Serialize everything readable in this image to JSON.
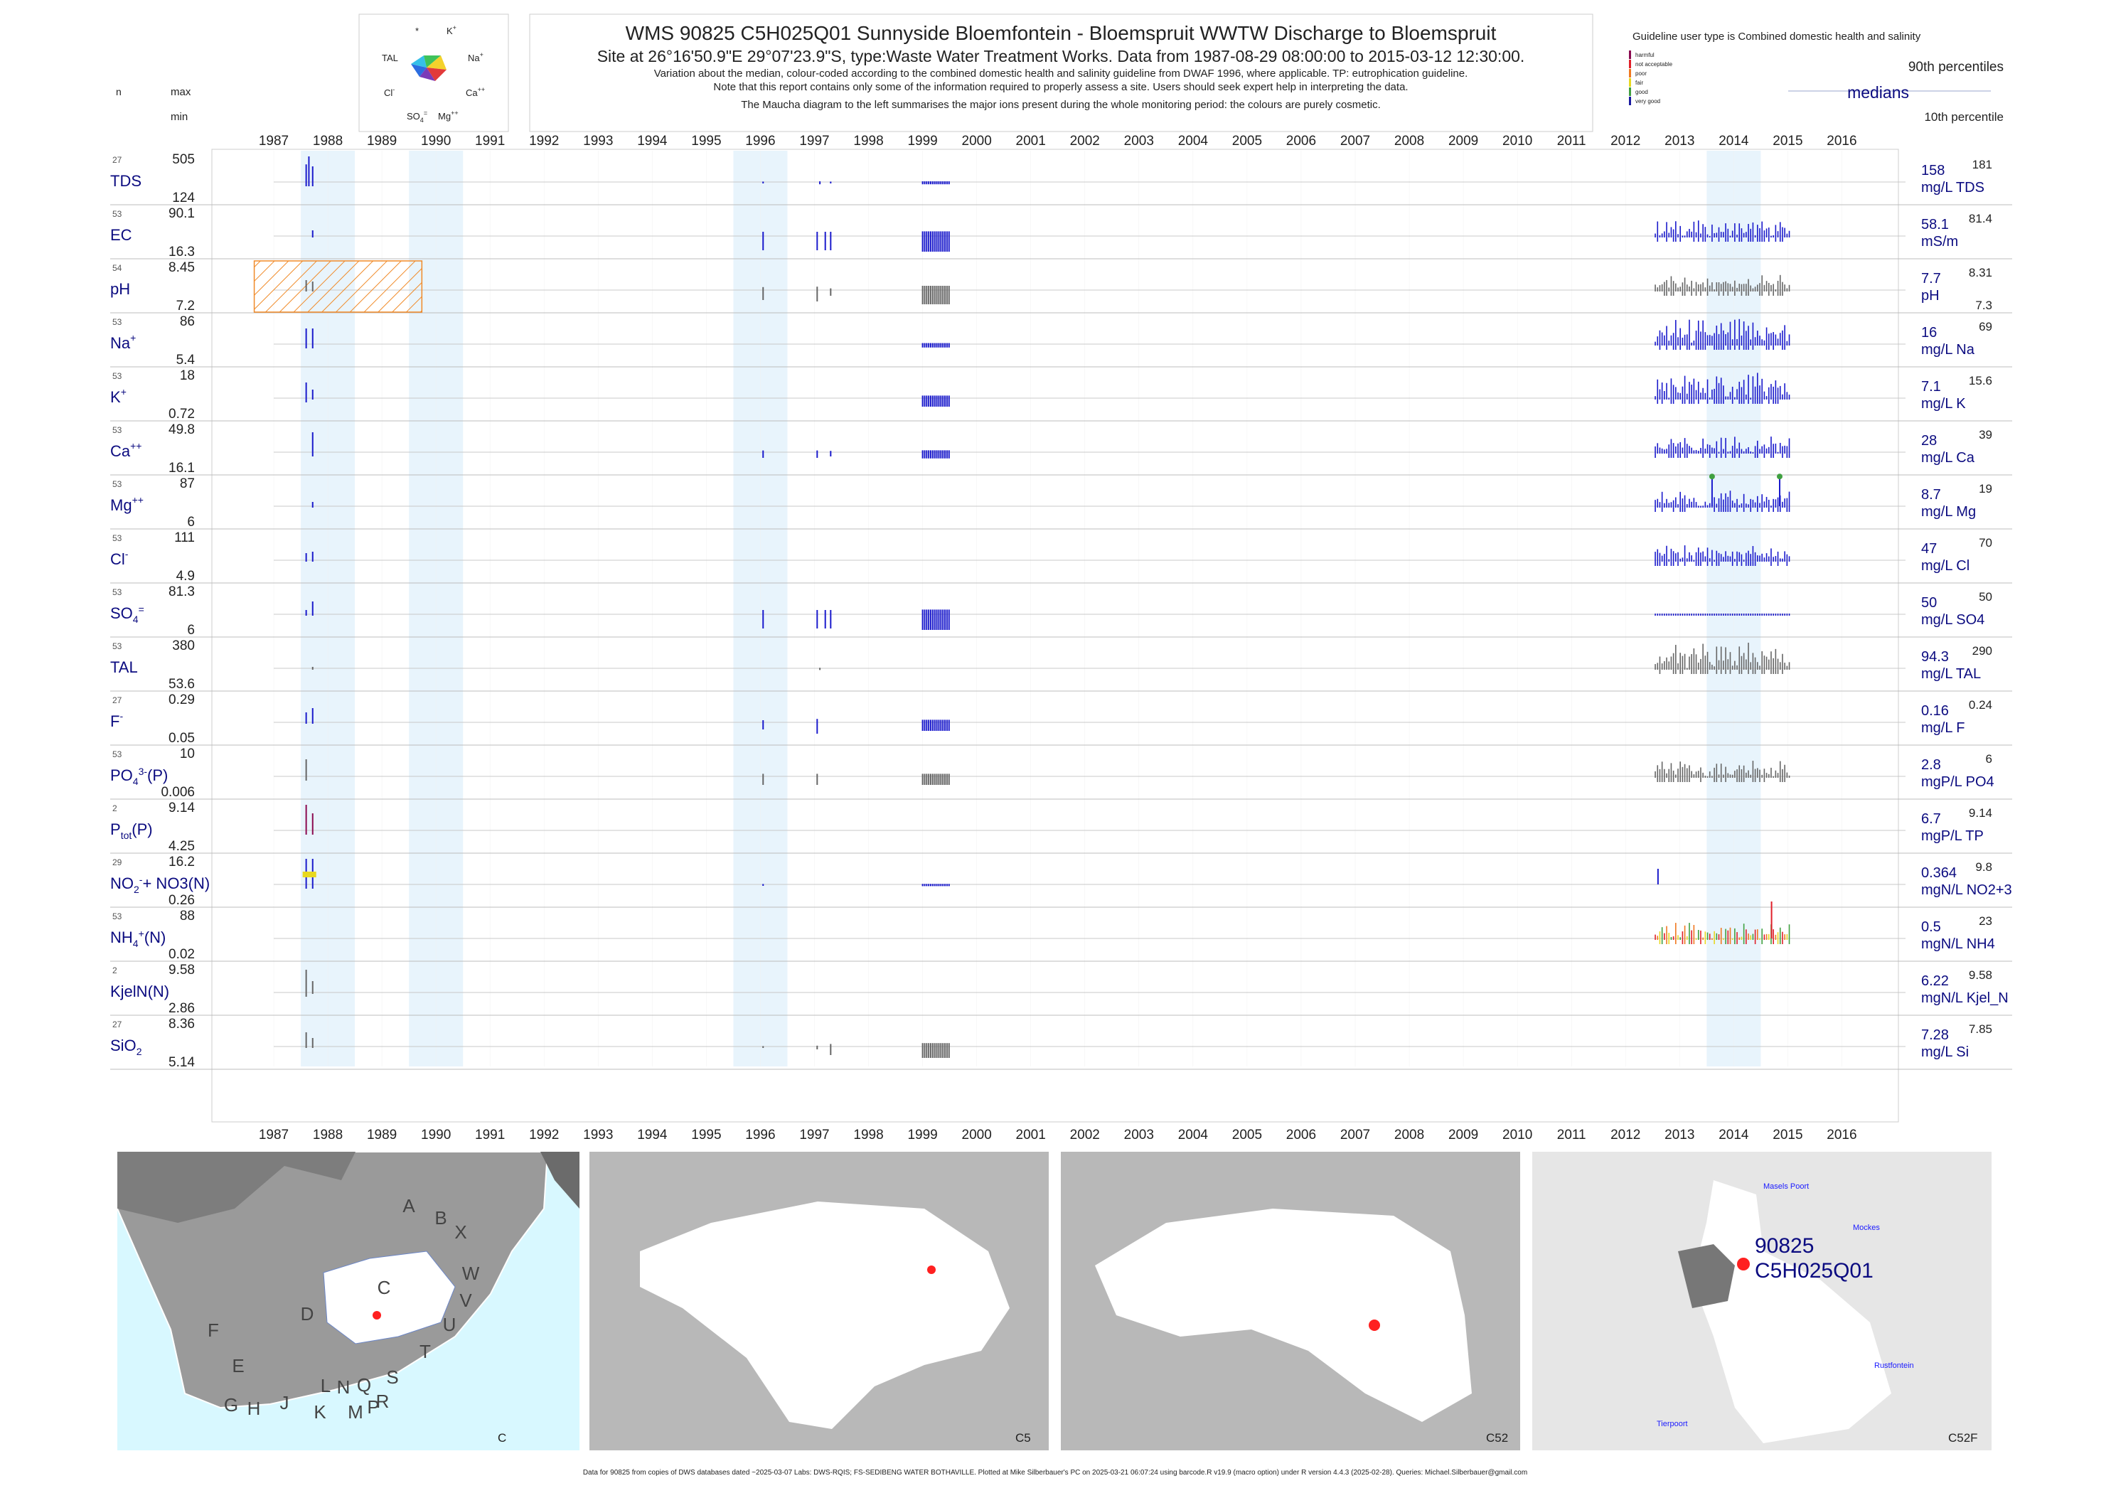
{
  "header": {
    "title": "WMS 90825 C5H025Q01 Sunnyside Bloemfontein - Bloemspruit WWTW Discharge to Bloemspruit",
    "subtitle": "Site at 26°16'50.9\"E 29°07'23.9\"S, type:Waste Water Treatment Works.  Data from 1987-08-29 08:00:00 to 2015-03-12 12:30:00.",
    "note1": "Variation about the median,  colour-coded according to the combined domestic health and salinity guideline from DWAF 1996, where applicable. TP: eutrophication guideline.",
    "note2": "Note that this report contains only some of the information required to properly assess a site. Users should seek expert help in interpreting the data.",
    "note3": "The Maucha diagram to the left summarises the major ions present during the whole monitoring period: the colours are purely cosmetic."
  },
  "left_header": {
    "n": "n",
    "max": "max",
    "min": "min"
  },
  "maucha": {
    "labels": [
      "*",
      "K+",
      "TAL",
      "Na+",
      "Cl-",
      "Ca++",
      "SO4=",
      "Mg++"
    ]
  },
  "legend": {
    "guideline": "Guideline user type is Combined domestic health and salinity",
    "classes": [
      {
        "name": "harmful",
        "color": "#8b0a50"
      },
      {
        "name": "not acceptable",
        "color": "#e0202a"
      },
      {
        "name": "poor",
        "color": "#f07820"
      },
      {
        "name": "fair",
        "color": "#e8d820"
      },
      {
        "name": "good",
        "color": "#40a040"
      },
      {
        "name": "very good",
        "color": "#1a1aa0"
      }
    ],
    "p90": "90th percentiles",
    "medians": "medians",
    "p10": "10th percentile"
  },
  "chart_data": {
    "type": "bar",
    "x_years": [
      "1987",
      "1988",
      "1989",
      "1990",
      "1991",
      "1992",
      "1993",
      "1994",
      "1995",
      "1996",
      "1997",
      "1998",
      "1999",
      "2000",
      "2001",
      "2002",
      "2003",
      "2004",
      "2005",
      "2006",
      "2007",
      "2008",
      "2009",
      "2010",
      "2011",
      "2012",
      "2013",
      "2014",
      "2015",
      "2016"
    ],
    "xlim": [
      1986.6,
      2017.0
    ],
    "shaded_years": [
      1988,
      1990,
      1996,
      2014
    ],
    "panels": [
      {
        "param": "TDS",
        "sup": "",
        "sub": "",
        "n": "27",
        "max": "505",
        "min": "124",
        "median": "158",
        "unit": "mg/L TDS",
        "p90": "181",
        "p10": "",
        "lines": [
          [
            1987.6,
            0.62
          ],
          [
            1987.65,
            0.9
          ],
          [
            1987.72,
            0.55
          ]
        ],
        "clusters": [
          [
            1996.05,
            0.05
          ],
          [
            1997.1,
            0.08
          ],
          [
            1997.3,
            0.05
          ],
          [
            1999.0,
            0.08
          ]
        ]
      },
      {
        "param": "EC",
        "sup": "",
        "sub": "",
        "n": "53",
        "max": "90.1",
        "min": "16.3",
        "median": "58.1",
        "unit": "mS/m",
        "p90": "81.4",
        "p10": "",
        "lines": [
          [
            1987.72,
            0.2
          ]
        ],
        "clusters": [
          [
            1996.05,
            0.5
          ],
          [
            1997.05,
            0.5
          ],
          [
            1997.2,
            0.5
          ],
          [
            1997.3,
            0.5
          ],
          [
            1999.0,
            0.55
          ]
        ],
        "late": true
      },
      {
        "param": "pH",
        "sup": "",
        "sub": "",
        "n": "54",
        "max": "8.45",
        "min": "7.2",
        "median": "7.7",
        "unit": "pH",
        "p90": "8.31",
        "p10": "7.3",
        "lines": [
          [
            1987.6,
            0.35
          ],
          [
            1987.72,
            0.3
          ]
        ],
        "clusters": [
          [
            1996.05,
            0.35
          ],
          [
            1997.05,
            0.4
          ],
          [
            1997.3,
            0.2
          ],
          [
            1999.0,
            0.5
          ]
        ],
        "late": true,
        "grey": true,
        "hatch": [
          1986.6,
          1989.7
        ]
      },
      {
        "param": "Na",
        "sup": "+",
        "sub": "",
        "n": "53",
        "max": "86",
        "min": "5.4",
        "median": "16",
        "unit": "mg/L Na",
        "p90": "69",
        "p10": "",
        "lines": [
          [
            1987.6,
            0.55
          ],
          [
            1987.72,
            0.55
          ]
        ],
        "clusters": [
          [
            1999.0,
            0.12
          ]
        ],
        "late": true,
        "tall": true
      },
      {
        "param": "K",
        "sup": "+",
        "sub": "",
        "n": "53",
        "max": "18",
        "min": "0.72",
        "median": "7.1",
        "unit": "mg/L K",
        "p90": "15.6",
        "p10": "",
        "lines": [
          [
            1987.6,
            0.55
          ],
          [
            1987.72,
            0.3
          ]
        ],
        "clusters": [
          [
            1999.0,
            0.3
          ]
        ],
        "late": true,
        "tall": true
      },
      {
        "param": "Ca",
        "sup": "++",
        "sub": "",
        "n": "53",
        "max": "49.8",
        "min": "16.1",
        "median": "28",
        "unit": "mg/L Ca",
        "p90": "39",
        "p10": "",
        "lines": [
          [
            1987.72,
            0.7
          ]
        ],
        "clusters": [
          [
            1996.05,
            0.2
          ],
          [
            1997.05,
            0.2
          ],
          [
            1997.3,
            0.15
          ],
          [
            1999.0,
            0.22
          ]
        ],
        "late": true
      },
      {
        "param": "Mg",
        "sup": "++",
        "sub": "",
        "n": "53",
        "max": "87",
        "min": "6",
        "median": "8.7",
        "unit": "mg/L Mg",
        "p90": "19",
        "p10": "",
        "lines": [
          [
            1987.72,
            0.15
          ]
        ],
        "clusters": [],
        "late": true,
        "spikes": [
          [
            2013.6,
            0.95
          ],
          [
            2014.85,
            0.95
          ]
        ]
      },
      {
        "param": "Cl",
        "sup": "-",
        "sub": "",
        "n": "53",
        "max": "111",
        "min": "4.9",
        "median": "47",
        "unit": "mg/L Cl",
        "p90": "70",
        "p10": "",
        "lines": [
          [
            1987.6,
            0.25
          ],
          [
            1987.72,
            0.3
          ]
        ],
        "clusters": [],
        "late": true
      },
      {
        "param": "SO",
        "sup": "=",
        "sub": "4",
        "n": "53",
        "max": "81.3",
        "min": "6",
        "median": "50",
        "unit": "mg/L SO4",
        "p90": "50",
        "p10": "",
        "lines": [
          [
            1987.6,
            0.15
          ],
          [
            1987.72,
            0.45
          ]
        ],
        "clusters": [
          [
            1996.05,
            0.5
          ],
          [
            1997.05,
            0.5
          ],
          [
            1997.2,
            0.5
          ],
          [
            1997.3,
            0.5
          ],
          [
            1999.0,
            0.55
          ]
        ],
        "late": true,
        "flat": true
      },
      {
        "param": "TAL",
        "sup": "",
        "sub": "",
        "n": "53",
        "max": "380",
        "min": "53.6",
        "median": "94.3",
        "unit": "mg/L TAL",
        "p90": "290",
        "p10": "",
        "lines": [
          [
            1987.72,
            0.05
          ]
        ],
        "clusters": [
          [
            1997.1,
            0.06
          ]
        ],
        "late": true,
        "grey": true,
        "tall": true
      },
      {
        "param": "F",
        "sup": "-",
        "sub": "",
        "n": "27",
        "max": "0.29",
        "min": "0.05",
        "median": "0.16",
        "unit": "mg/L F",
        "p90": "0.24",
        "p10": "",
        "lines": [
          [
            1987.6,
            0.35
          ],
          [
            1987.72,
            0.5
          ]
        ],
        "clusters": [
          [
            1996.05,
            0.25
          ],
          [
            1997.05,
            0.4
          ],
          [
            1999.0,
            0.3
          ]
        ]
      },
      {
        "param": "PO",
        "sup": "3-",
        "sub": "4",
        "extra": "(P)",
        "n": "53",
        "max": "10",
        "min": "0.006",
        "median": "2.8",
        "unit": "mgP/L PO4",
        "p90": "6",
        "p10": "",
        "lines": [
          [
            1987.6,
            0.6
          ]
        ],
        "clusters": [
          [
            1996.05,
            0.3
          ],
          [
            1997.05,
            0.3
          ],
          [
            1999.0,
            0.3
          ]
        ],
        "late": true,
        "grey": true
      },
      {
        "param": "P",
        "sup": "",
        "sub": "tot",
        "extra": "(P)",
        "n": "2",
        "max": "9.14",
        "min": "4.25",
        "median": "6.7",
        "unit": "mgP/L TP",
        "p90": "9.14",
        "p10": "",
        "lines": [
          [
            1987.6,
            0.9
          ],
          [
            1987.72,
            0.6
          ]
        ],
        "clusters": [],
        "tp": true
      },
      {
        "param": "NO",
        "sup": "-",
        "sub": "2",
        "extra": "+ NO3(N)",
        "n": "29",
        "max": "16.2",
        "min": "0.26",
        "median": "0.364",
        "unit": "mgN/L NO2+3",
        "p90": "9.8",
        "p10": "",
        "lines": [
          [
            1987.6,
            0.9
          ],
          [
            1987.72,
            0.9
          ]
        ],
        "clusters": [
          [
            1996.05,
            0.05
          ],
          [
            1999.0,
            0.06
          ]
        ],
        "spikes": [
          [
            2012.6,
            0.5
          ]
        ],
        "nox": true
      },
      {
        "param": "NH",
        "sup": "+",
        "sub": "4",
        "extra": "(N)",
        "n": "53",
        "max": "88",
        "min": "0.02",
        "median": "0.5",
        "unit": "mgN/L NH4",
        "p90": "23",
        "p10": "",
        "lines": [],
        "clusters": [],
        "late": true,
        "nh4": true
      },
      {
        "param": "KjelN(N)",
        "sup": "",
        "sub": "",
        "n": "2",
        "max": "9.58",
        "min": "2.86",
        "median": "6.22",
        "unit": "mgN/L Kjel_N",
        "p90": "9.58",
        "p10": "",
        "lines": [
          [
            1987.6,
            0.8
          ],
          [
            1987.72,
            0.4
          ]
        ],
        "clusters": [],
        "grey": true
      },
      {
        "param": "SiO",
        "sup": "",
        "sub": "2",
        "n": "27",
        "max": "8.36",
        "min": "5.14",
        "median": "7.28",
        "unit": "mg/L Si",
        "p90": "7.85",
        "p10": "",
        "lines": [
          [
            1987.6,
            0.5
          ],
          [
            1987.72,
            0.3
          ]
        ],
        "clusters": [
          [
            1996.05,
            0.05
          ],
          [
            1997.05,
            0.1
          ],
          [
            1997.3,
            0.3
          ],
          [
            1999.0,
            0.4
          ]
        ],
        "grey": true
      }
    ]
  },
  "maps": [
    {
      "name": "overview",
      "label": "C",
      "regions": [
        "A",
        "B",
        "X",
        "C",
        "D",
        "W",
        "V",
        "U",
        "T",
        "F",
        "E",
        "G",
        "H",
        "J",
        "K",
        "L",
        "M",
        "N",
        "P",
        "Q",
        "R",
        "S"
      ]
    },
    {
      "name": "catchment-c5",
      "label": "C5"
    },
    {
      "name": "catchment-c52",
      "label": "C52"
    },
    {
      "name": "catchment-c52f",
      "label": "C52F",
      "site_id": "90825",
      "site_code": "C5H025Q01",
      "places": [
        "Masels Poort",
        "Mockes",
        "Rustfontein",
        "Tierpoort"
      ]
    }
  ],
  "footer": "Data for 90825 from copies of DWS databases dated ~2025-03-07 Labs: DWS-RQIS; FS-SEDIBENG WATER BOTHAVILLE. Plotted at Mike Silberbauer's PC on 2025-03-21 06:07:24 using barcode.R v19.9 (macro option) under R version 4.4.3 (2025-02-28). Queries: Michael.Silberbauer@gmail.com"
}
